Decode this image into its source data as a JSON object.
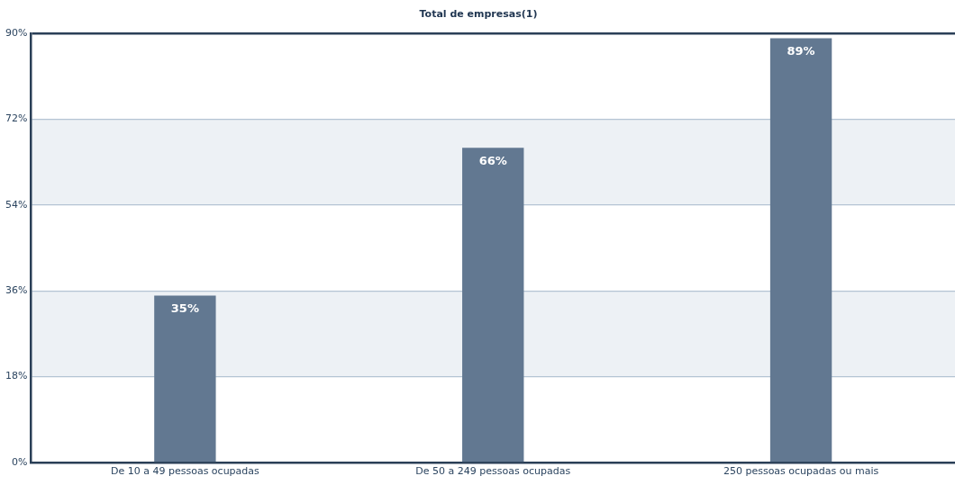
{
  "chart_data": {
    "type": "bar",
    "title": "Total de empresas(1)",
    "categories": [
      "De 10 a 49 pessoas ocupadas",
      "De 50 a 249 pessoas ocupadas",
      "250 pessoas ocupadas ou mais"
    ],
    "values": [
      35,
      66,
      89
    ],
    "color": "#627891",
    "value_labels": [
      "35%",
      "66%",
      "89%"
    ],
    "ylim": [
      0,
      90
    ],
    "yticks": [
      {
        "value": 0,
        "label": "0%"
      },
      {
        "value": 18,
        "label": "18%"
      },
      {
        "value": 36,
        "label": "36%"
      },
      {
        "value": 54,
        "label": "54%"
      },
      {
        "value": 72,
        "label": "72%"
      },
      {
        "value": 90,
        "label": "90%"
      }
    ],
    "grid": "y",
    "legend": false
  }
}
